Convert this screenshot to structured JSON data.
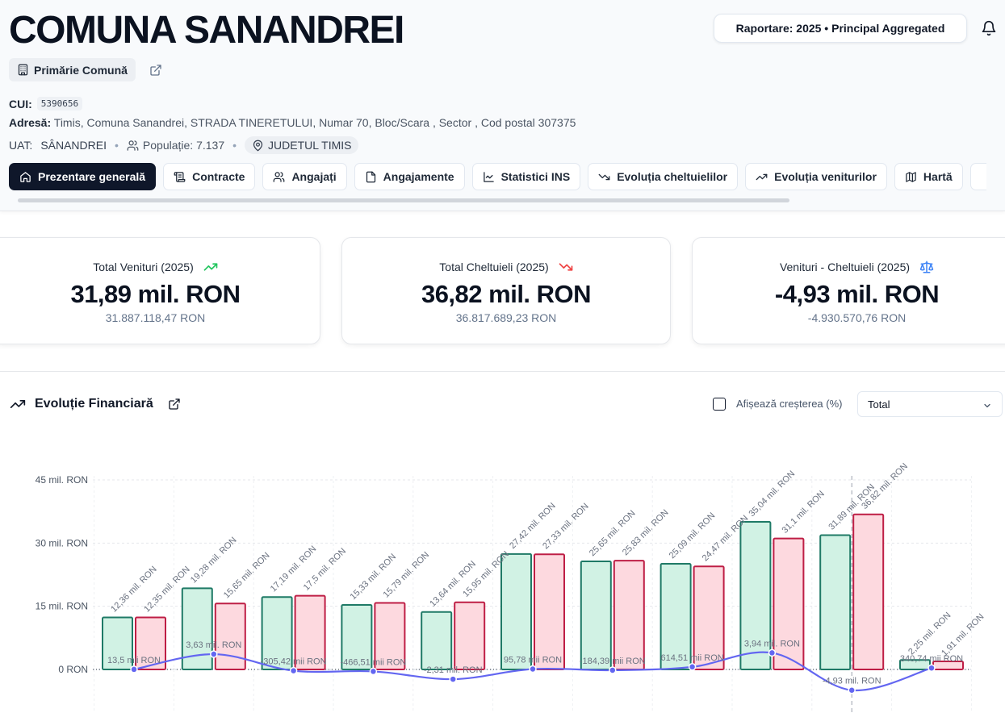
{
  "header": {
    "title": "COMUNA SANANDREI",
    "report_button": "Raportare: 2025 • Principal Aggregated",
    "tag": "Primărie Comună",
    "cui_label": "CUI:",
    "cui_value": "5390656",
    "address_label": "Adresă:",
    "address_value": "Timis, Comuna Sanandrei, STRADA TINERETULUI, Numar 70, Bloc/Scara , Sector , Cod postal 307375",
    "uat_label": "UAT:",
    "uat_value": "SÂNANDREI",
    "population": "Populație: 7.137",
    "county": "JUDETUL TIMIS"
  },
  "tabs": [
    {
      "label": "Prezentare generală",
      "icon": "home-icon"
    },
    {
      "label": "Contracte",
      "icon": "contract-icon"
    },
    {
      "label": "Angajați",
      "icon": "users-icon"
    },
    {
      "label": "Angajamente",
      "icon": "file-icon"
    },
    {
      "label": "Statistici INS",
      "icon": "line-chart-icon"
    },
    {
      "label": "Evoluția cheltuielilor",
      "icon": "trending-down-icon"
    },
    {
      "label": "Evoluția veniturilor",
      "icon": "trending-up-icon"
    },
    {
      "label": "Hartă",
      "icon": "map-icon"
    }
  ],
  "cards": [
    {
      "title": "Total Venituri (2025)",
      "main": "31,89 mil. RON",
      "sub": "31.887.118,47 RON",
      "icon": "trending-up-icon",
      "color": "#22c55e"
    },
    {
      "title": "Total Cheltuieli (2025)",
      "main": "36,82 mil. RON",
      "sub": "36.817.689,23 RON",
      "icon": "trending-down-icon",
      "color": "#ef4444"
    },
    {
      "title": "Venituri - Cheltuieli (2025)",
      "main": "-4,93 mil. RON",
      "sub": "-4.930.570,76 RON",
      "icon": "scale-icon",
      "color": "#3b82f6"
    }
  ],
  "section": {
    "title": "Evoluție Financiară",
    "checkbox_label": "Afișează creșterea (%)",
    "select_value": "Total"
  },
  "colors": {
    "income_fill": "#d1f2e4",
    "income_stroke": "#1f7a66",
    "expense_fill": "#fdd9df",
    "expense_stroke": "#be1e45",
    "balance_line": "#6366f1"
  },
  "chart_data": {
    "type": "bar",
    "ylim": [
      -5,
      45
    ],
    "yticks": [
      0,
      15,
      30,
      45
    ],
    "ytick_labels": [
      "0 RON",
      "15 mil. RON",
      "30 mil. RON",
      "45 mil. RON"
    ],
    "series": [
      {
        "values": [
          12.36,
          19.28,
          17.19,
          15.33,
          13.64,
          27.42,
          25.65,
          25.09,
          35.04,
          31.89,
          2.25
        ],
        "labels": [
          "12,36 mil. RON",
          "19,28 mil. RON",
          "17,19 mil. RON",
          "15,33 mil. RON",
          "13,64 mil. RON",
          "27,42 mil. RON",
          "25,65 mil. RON",
          "25,09 mil. RON",
          "35,04 mil. RON",
          "31,89 mil. RON",
          "2,25 mil. RON"
        ]
      },
      {
        "values": [
          12.35,
          15.65,
          17.5,
          15.79,
          15.95,
          27.33,
          25.83,
          24.47,
          31.1,
          36.82,
          1.91
        ],
        "labels": [
          "12,35 mil. RON",
          "15,65 mil. RON",
          "17,5 mil. RON",
          "15,79 mil. RON",
          "15,95 mil. RON",
          "27,33 mil. RON",
          "25,83 mil. RON",
          "24,47 mil. RON",
          "31,1 mil. RON",
          "36,82 mil. RON",
          "1,91 mil. RON"
        ]
      },
      {
        "type": "line",
        "values": [
          0.0135,
          3.63,
          -0.30542,
          -0.46651,
          -2.31,
          0.09578,
          -0.18439,
          0.61451,
          3.94,
          -4.93,
          0.34074
        ],
        "labels": [
          "13,5 mii RON",
          "3,63 mil. RON",
          "-305,42 mii RON",
          "-466,51 mii RON",
          "-2,31 mil. RON",
          "95,78 mii RON",
          "-184,39 mii RON",
          "614,51 mii RON",
          "3,94 mil. RON",
          "-4,93 mil. RON",
          "340,74 mii RON"
        ]
      }
    ]
  }
}
